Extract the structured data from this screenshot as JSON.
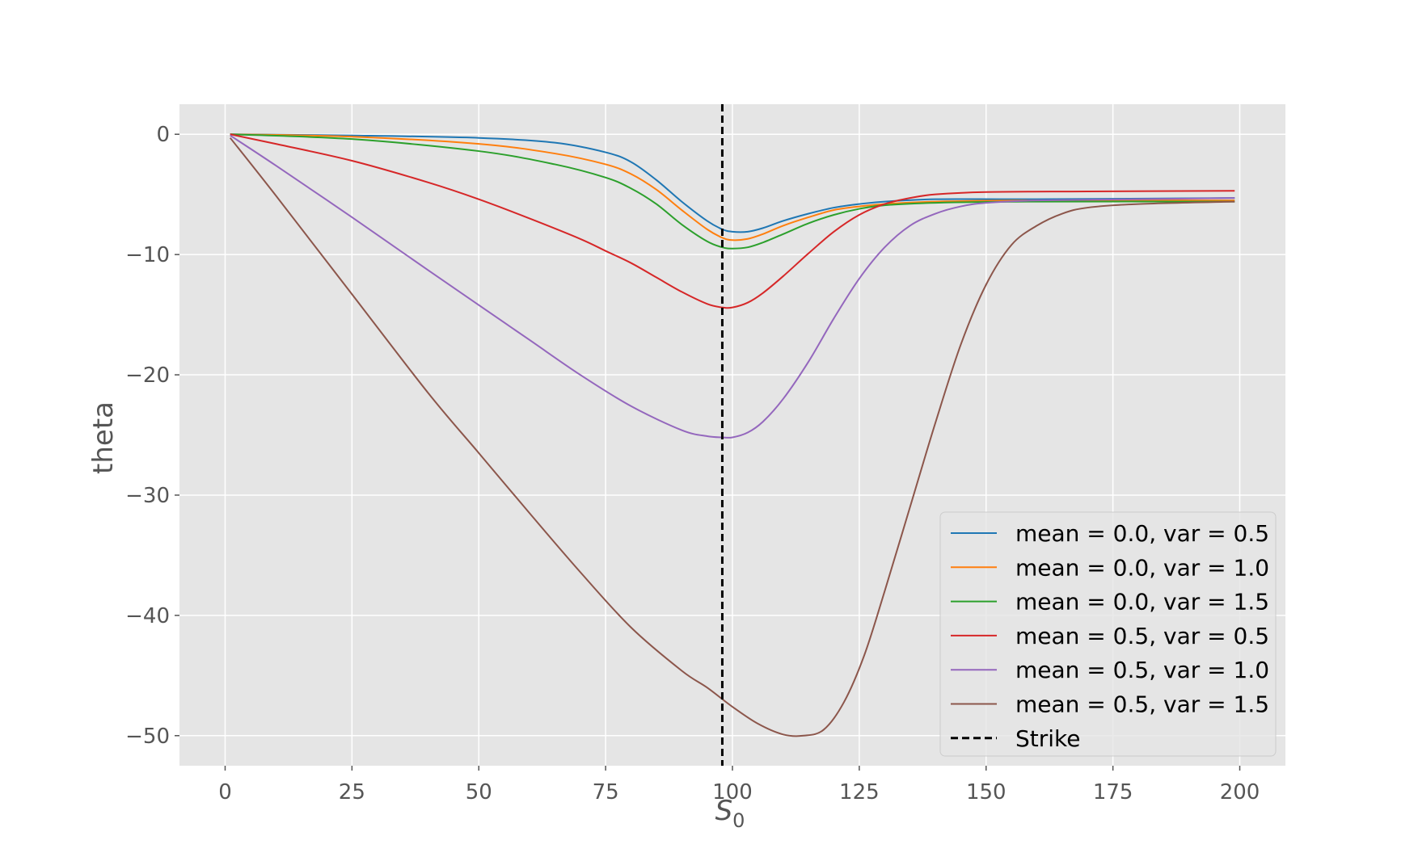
{
  "chart_data": {
    "type": "line",
    "title": "",
    "xlabel": "S",
    "xlabel_subscript": "0",
    "ylabel": "theta",
    "xlim": [
      -9,
      209
    ],
    "ylim": [
      -52.5,
      2.5
    ],
    "xticks": [
      0,
      25,
      50,
      75,
      100,
      125,
      150,
      175,
      200
    ],
    "xtick_labels": [
      "0",
      "25",
      "50",
      "75",
      "100",
      "125",
      "150",
      "175",
      "200"
    ],
    "yticks": [
      0,
      -10,
      -20,
      -30,
      -40,
      -50
    ],
    "ytick_labels": [
      "0",
      "−10",
      "−20",
      "−30",
      "−40",
      "−50"
    ],
    "grid": true,
    "legend_position": "lower-right",
    "strike": {
      "x": 98,
      "label": "Strike",
      "color": "#000000",
      "style": "dashed"
    },
    "series": [
      {
        "name": "mean = 0.0, var = 0.5",
        "color": "#1f77b4",
        "points": [
          [
            1,
            0
          ],
          [
            25,
            -0.1
          ],
          [
            50,
            -0.3
          ],
          [
            65,
            -0.7
          ],
          [
            75,
            -1.5
          ],
          [
            80,
            -2.3
          ],
          [
            85,
            -3.8
          ],
          [
            90,
            -5.6
          ],
          [
            95,
            -7.2
          ],
          [
            98,
            -7.9
          ],
          [
            100,
            -8.1
          ],
          [
            103,
            -8.1
          ],
          [
            106,
            -7.8
          ],
          [
            110,
            -7.2
          ],
          [
            115,
            -6.6
          ],
          [
            120,
            -6.1
          ],
          [
            125,
            -5.8
          ],
          [
            130,
            -5.6
          ],
          [
            140,
            -5.4
          ],
          [
            160,
            -5.4
          ],
          [
            199,
            -5.3
          ]
        ]
      },
      {
        "name": "mean = 0.0, var = 1.0",
        "color": "#ff7f0e",
        "points": [
          [
            1,
            0
          ],
          [
            25,
            -0.2
          ],
          [
            50,
            -0.8
          ],
          [
            65,
            -1.6
          ],
          [
            75,
            -2.5
          ],
          [
            80,
            -3.3
          ],
          [
            85,
            -4.6
          ],
          [
            90,
            -6.3
          ],
          [
            95,
            -7.9
          ],
          [
            98,
            -8.6
          ],
          [
            100,
            -8.8
          ],
          [
            103,
            -8.7
          ],
          [
            106,
            -8.3
          ],
          [
            110,
            -7.6
          ],
          [
            115,
            -6.9
          ],
          [
            120,
            -6.3
          ],
          [
            125,
            -6.0
          ],
          [
            130,
            -5.8
          ],
          [
            140,
            -5.6
          ],
          [
            160,
            -5.5
          ],
          [
            199,
            -5.5
          ]
        ]
      },
      {
        "name": "mean = 0.0, var = 1.5",
        "color": "#2ca02c",
        "points": [
          [
            1,
            0
          ],
          [
            25,
            -0.4
          ],
          [
            50,
            -1.4
          ],
          [
            65,
            -2.5
          ],
          [
            75,
            -3.6
          ],
          [
            80,
            -4.5
          ],
          [
            85,
            -5.8
          ],
          [
            90,
            -7.5
          ],
          [
            95,
            -8.9
          ],
          [
            98,
            -9.4
          ],
          [
            100,
            -9.5
          ],
          [
            103,
            -9.4
          ],
          [
            106,
            -9.0
          ],
          [
            110,
            -8.3
          ],
          [
            115,
            -7.4
          ],
          [
            120,
            -6.7
          ],
          [
            125,
            -6.2
          ],
          [
            130,
            -5.9
          ],
          [
            140,
            -5.7
          ],
          [
            160,
            -5.6
          ],
          [
            199,
            -5.6
          ]
        ]
      },
      {
        "name": "mean = 0.5, var = 0.5",
        "color": "#d62728",
        "points": [
          [
            1,
            0
          ],
          [
            10,
            -0.8
          ],
          [
            25,
            -2.2
          ],
          [
            40,
            -4.0
          ],
          [
            50,
            -5.4
          ],
          [
            60,
            -7.0
          ],
          [
            70,
            -8.7
          ],
          [
            75,
            -9.7
          ],
          [
            80,
            -10.7
          ],
          [
            85,
            -11.9
          ],
          [
            90,
            -13.1
          ],
          [
            95,
            -14.1
          ],
          [
            98,
            -14.4
          ],
          [
            100,
            -14.4
          ],
          [
            103,
            -14.0
          ],
          [
            106,
            -13.2
          ],
          [
            110,
            -11.8
          ],
          [
            115,
            -9.9
          ],
          [
            120,
            -8.1
          ],
          [
            125,
            -6.7
          ],
          [
            130,
            -5.8
          ],
          [
            135,
            -5.3
          ],
          [
            140,
            -5.0
          ],
          [
            150,
            -4.8
          ],
          [
            170,
            -4.75
          ],
          [
            199,
            -4.7
          ]
        ]
      },
      {
        "name": "mean = 0.5, var = 1.0",
        "color": "#9467bd",
        "points": [
          [
            1,
            -0.1
          ],
          [
            10,
            -2.6
          ],
          [
            25,
            -6.9
          ],
          [
            40,
            -11.3
          ],
          [
            50,
            -14.2
          ],
          [
            60,
            -17.1
          ],
          [
            70,
            -20.0
          ],
          [
            80,
            -22.6
          ],
          [
            90,
            -24.6
          ],
          [
            95,
            -25.1
          ],
          [
            98,
            -25.2
          ],
          [
            100,
            -25.2
          ],
          [
            103,
            -24.8
          ],
          [
            106,
            -23.9
          ],
          [
            110,
            -22.0
          ],
          [
            115,
            -18.9
          ],
          [
            120,
            -15.3
          ],
          [
            125,
            -12.0
          ],
          [
            130,
            -9.4
          ],
          [
            135,
            -7.6
          ],
          [
            140,
            -6.6
          ],
          [
            145,
            -6.0
          ],
          [
            150,
            -5.7
          ],
          [
            160,
            -5.5
          ],
          [
            180,
            -5.4
          ],
          [
            199,
            -5.3
          ]
        ]
      },
      {
        "name": "mean = 0.5, var = 1.5",
        "color": "#8c564b",
        "points": [
          [
            1,
            -0.3
          ],
          [
            10,
            -5.1
          ],
          [
            25,
            -13.3
          ],
          [
            40,
            -21.5
          ],
          [
            50,
            -26.5
          ],
          [
            60,
            -31.5
          ],
          [
            70,
            -36.4
          ],
          [
            80,
            -41.0
          ],
          [
            90,
            -44.6
          ],
          [
            95,
            -46.0
          ],
          [
            100,
            -47.6
          ],
          [
            105,
            -49.0
          ],
          [
            110,
            -49.9
          ],
          [
            114,
            -50.0
          ],
          [
            118,
            -49.5
          ],
          [
            122,
            -47.2
          ],
          [
            126,
            -43.3
          ],
          [
            130,
            -38.0
          ],
          [
            135,
            -31.0
          ],
          [
            140,
            -24.0
          ],
          [
            145,
            -17.5
          ],
          [
            150,
            -12.5
          ],
          [
            155,
            -9.2
          ],
          [
            160,
            -7.6
          ],
          [
            165,
            -6.6
          ],
          [
            170,
            -6.1
          ],
          [
            180,
            -5.8
          ],
          [
            199,
            -5.6
          ]
        ]
      }
    ]
  }
}
